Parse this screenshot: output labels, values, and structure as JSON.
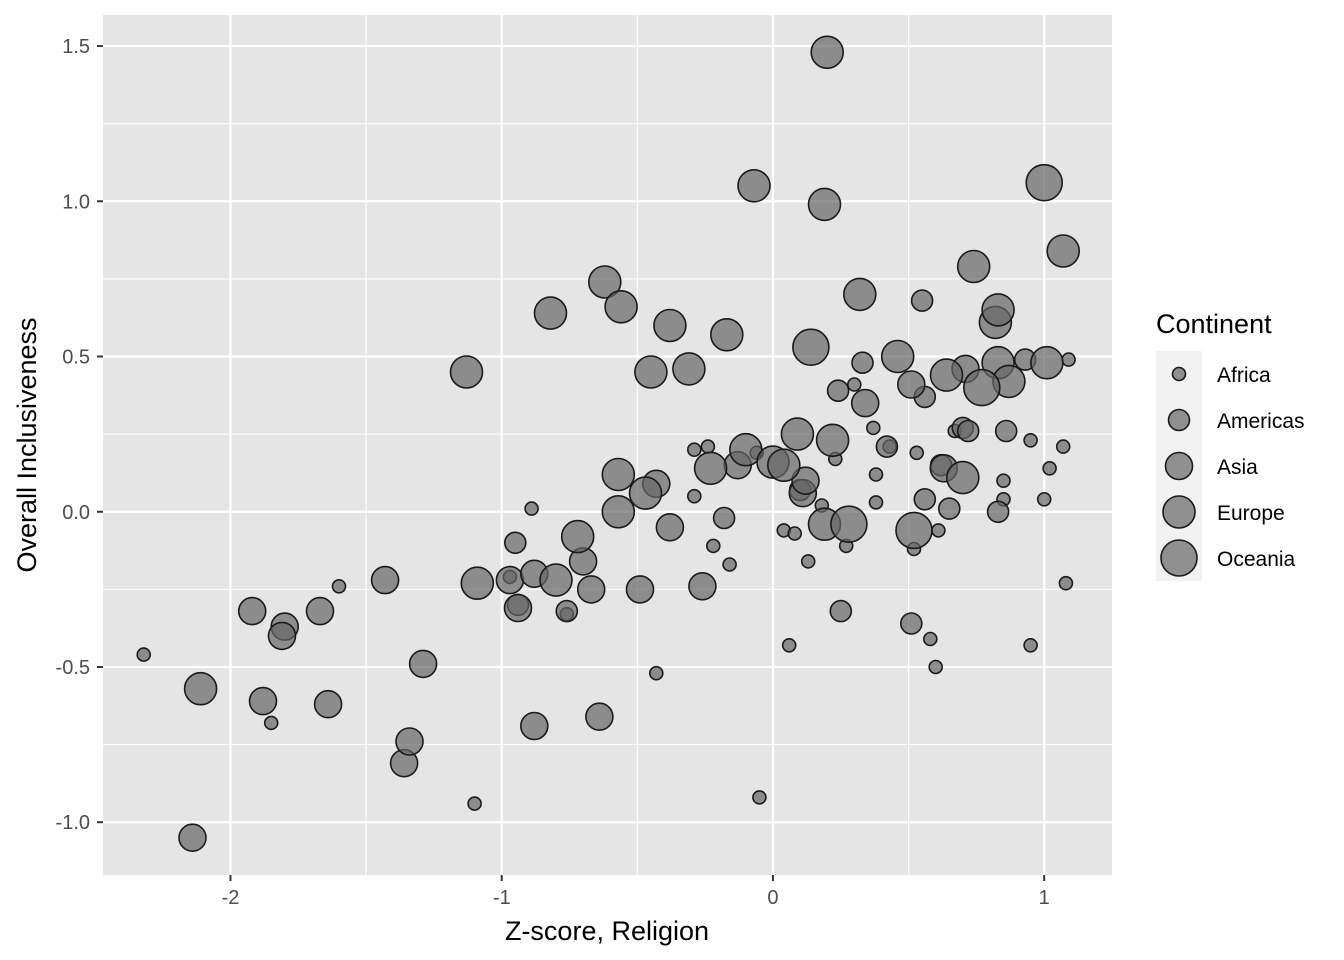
{
  "chart_data": {
    "type": "scatter",
    "title": "",
    "xlabel": "Z-score, Religion",
    "ylabel": "Overall Inclusiveness",
    "xlim": [
      -2.47,
      1.25
    ],
    "ylim": [
      -1.17,
      1.6
    ],
    "x_ticks": [
      -2,
      -1,
      0,
      1
    ],
    "x_tick_labels": [
      "-2",
      "-1",
      "0",
      "1"
    ],
    "y_ticks": [
      -1.0,
      -0.5,
      0.0,
      0.5,
      1.0,
      1.5
    ],
    "y_tick_labels": [
      "-1.0",
      "-0.5",
      "0.0",
      "0.5",
      "1.0",
      "1.5"
    ],
    "grid": true,
    "panel_color": "#e5e5e5",
    "grid_color": "#ffffff",
    "point_fill": "#666666",
    "point_opacity": 0.7,
    "point_stroke": "#1a1a1a",
    "legend": {
      "title": "Continent",
      "placement": "right",
      "entries": [
        "Africa",
        "Americas",
        "Asia",
        "Europe",
        "Oceania"
      ]
    },
    "size_by_continent": {
      "Africa": 1,
      "Americas": 2,
      "Asia": 3,
      "Europe": 4,
      "Oceania": 5
    },
    "points": [
      {
        "x": -2.32,
        "y": -0.46,
        "c": "Africa"
      },
      {
        "x": -1.6,
        "y": -0.24,
        "c": "Africa"
      },
      {
        "x": -1.85,
        "y": -0.68,
        "c": "Africa"
      },
      {
        "x": -1.1,
        "y": -0.94,
        "c": "Africa"
      },
      {
        "x": -0.97,
        "y": -0.21,
        "c": "Africa"
      },
      {
        "x": -0.89,
        "y": 0.01,
        "c": "Africa"
      },
      {
        "x": -0.76,
        "y": -0.33,
        "c": "Africa"
      },
      {
        "x": -0.43,
        "y": -0.52,
        "c": "Africa"
      },
      {
        "x": -0.29,
        "y": 0.2,
        "c": "Africa"
      },
      {
        "x": -0.29,
        "y": 0.05,
        "c": "Africa"
      },
      {
        "x": -0.24,
        "y": 0.21,
        "c": "Africa"
      },
      {
        "x": -0.22,
        "y": -0.11,
        "c": "Africa"
      },
      {
        "x": -0.16,
        "y": -0.17,
        "c": "Africa"
      },
      {
        "x": -0.06,
        "y": 0.19,
        "c": "Africa"
      },
      {
        "x": -0.05,
        "y": -0.92,
        "c": "Africa"
      },
      {
        "x": 0.04,
        "y": -0.06,
        "c": "Africa"
      },
      {
        "x": 0.06,
        "y": -0.43,
        "c": "Africa"
      },
      {
        "x": 0.08,
        "y": -0.07,
        "c": "Africa"
      },
      {
        "x": 0.13,
        "y": -0.16,
        "c": "Africa"
      },
      {
        "x": 0.18,
        "y": 0.02,
        "c": "Africa"
      },
      {
        "x": 0.23,
        "y": 0.17,
        "c": "Africa"
      },
      {
        "x": 0.27,
        "y": -0.11,
        "c": "Africa"
      },
      {
        "x": 0.3,
        "y": 0.41,
        "c": "Africa"
      },
      {
        "x": 0.37,
        "y": 0.27,
        "c": "Africa"
      },
      {
        "x": 0.38,
        "y": 0.12,
        "c": "Africa"
      },
      {
        "x": 0.38,
        "y": 0.03,
        "c": "Africa"
      },
      {
        "x": 0.43,
        "y": 0.21,
        "c": "Africa"
      },
      {
        "x": 0.52,
        "y": -0.12,
        "c": "Africa"
      },
      {
        "x": 0.53,
        "y": 0.19,
        "c": "Africa"
      },
      {
        "x": 0.58,
        "y": -0.41,
        "c": "Africa"
      },
      {
        "x": 0.6,
        "y": -0.5,
        "c": "Africa"
      },
      {
        "x": 0.61,
        "y": -0.06,
        "c": "Africa"
      },
      {
        "x": 0.67,
        "y": 0.26,
        "c": "Africa"
      },
      {
        "x": 0.95,
        "y": 0.23,
        "c": "Africa"
      },
      {
        "x": 0.95,
        "y": -0.43,
        "c": "Africa"
      },
      {
        "x": 0.85,
        "y": 0.1,
        "c": "Africa"
      },
      {
        "x": 0.85,
        "y": 0.04,
        "c": "Africa"
      },
      {
        "x": 1.0,
        "y": 0.04,
        "c": "Africa"
      },
      {
        "x": 1.02,
        "y": 0.14,
        "c": "Africa"
      },
      {
        "x": 1.07,
        "y": 0.21,
        "c": "Africa"
      },
      {
        "x": 1.08,
        "y": -0.23,
        "c": "Africa"
      },
      {
        "x": 1.09,
        "y": 0.49,
        "c": "Africa"
      },
      {
        "x": -0.76,
        "y": -0.32,
        "c": "Americas"
      },
      {
        "x": -0.95,
        "y": -0.1,
        "c": "Americas"
      },
      {
        "x": -0.94,
        "y": -0.3,
        "c": "Americas"
      },
      {
        "x": -0.18,
        "y": -0.02,
        "c": "Americas"
      },
      {
        "x": 0.1,
        "y": 0.07,
        "c": "Americas"
      },
      {
        "x": 0.24,
        "y": 0.39,
        "c": "Americas"
      },
      {
        "x": 0.25,
        "y": -0.32,
        "c": "Americas"
      },
      {
        "x": 0.42,
        "y": 0.21,
        "c": "Americas"
      },
      {
        "x": 0.51,
        "y": -0.36,
        "c": "Americas"
      },
      {
        "x": 0.56,
        "y": 0.04,
        "c": "Americas"
      },
      {
        "x": 0.55,
        "y": 0.68,
        "c": "Americas"
      },
      {
        "x": 0.56,
        "y": 0.37,
        "c": "Americas"
      },
      {
        "x": 0.62,
        "y": 0.15,
        "c": "Americas"
      },
      {
        "x": 0.65,
        "y": 0.01,
        "c": "Americas"
      },
      {
        "x": 0.7,
        "y": 0.27,
        "c": "Americas"
      },
      {
        "x": 0.72,
        "y": 0.26,
        "c": "Americas"
      },
      {
        "x": 0.83,
        "y": -0.0,
        "c": "Americas"
      },
      {
        "x": 0.86,
        "y": 0.26,
        "c": "Americas"
      },
      {
        "x": 0.93,
        "y": 0.49,
        "c": "Americas"
      },
      {
        "x": 0.33,
        "y": 0.48,
        "c": "Americas"
      },
      {
        "x": -1.36,
        "y": -0.81,
        "c": "Asia"
      },
      {
        "x": -1.34,
        "y": -0.74,
        "c": "Asia"
      },
      {
        "x": -1.29,
        "y": -0.49,
        "c": "Asia"
      },
      {
        "x": -1.43,
        "y": -0.22,
        "c": "Asia"
      },
      {
        "x": -1.67,
        "y": -0.32,
        "c": "Asia"
      },
      {
        "x": -1.64,
        "y": -0.62,
        "c": "Asia"
      },
      {
        "x": -1.8,
        "y": -0.37,
        "c": "Asia"
      },
      {
        "x": -1.81,
        "y": -0.4,
        "c": "Asia"
      },
      {
        "x": -1.88,
        "y": -0.61,
        "c": "Asia"
      },
      {
        "x": -1.92,
        "y": -0.32,
        "c": "Asia"
      },
      {
        "x": -2.14,
        "y": -1.05,
        "c": "Asia"
      },
      {
        "x": -0.97,
        "y": -0.22,
        "c": "Asia"
      },
      {
        "x": -0.94,
        "y": -0.31,
        "c": "Asia"
      },
      {
        "x": -0.88,
        "y": -0.69,
        "c": "Asia"
      },
      {
        "x": -0.88,
        "y": -0.2,
        "c": "Asia"
      },
      {
        "x": -0.7,
        "y": -0.16,
        "c": "Asia"
      },
      {
        "x": -0.67,
        "y": -0.25,
        "c": "Asia"
      },
      {
        "x": -0.64,
        "y": -0.66,
        "c": "Asia"
      },
      {
        "x": -0.49,
        "y": -0.25,
        "c": "Asia"
      },
      {
        "x": -0.43,
        "y": 0.09,
        "c": "Asia"
      },
      {
        "x": -0.38,
        "y": -0.05,
        "c": "Asia"
      },
      {
        "x": -0.26,
        "y": -0.24,
        "c": "Asia"
      },
      {
        "x": -0.13,
        "y": 0.15,
        "c": "Asia"
      },
      {
        "x": 0.11,
        "y": 0.06,
        "c": "Asia"
      },
      {
        "x": 0.12,
        "y": 0.1,
        "c": "Asia"
      },
      {
        "x": 0.34,
        "y": 0.35,
        "c": "Asia"
      },
      {
        "x": 0.51,
        "y": 0.41,
        "c": "Asia"
      },
      {
        "x": 0.63,
        "y": 0.14,
        "c": "Asia"
      },
      {
        "x": 0.71,
        "y": 0.46,
        "c": "Asia"
      },
      {
        "x": -2.11,
        "y": -0.57,
        "c": "Europe"
      },
      {
        "x": -1.13,
        "y": 0.45,
        "c": "Europe"
      },
      {
        "x": -1.09,
        "y": -0.23,
        "c": "Europe"
      },
      {
        "x": -0.82,
        "y": 0.64,
        "c": "Europe"
      },
      {
        "x": -0.8,
        "y": -0.22,
        "c": "Europe"
      },
      {
        "x": -0.72,
        "y": -0.08,
        "c": "Europe"
      },
      {
        "x": -0.62,
        "y": 0.74,
        "c": "Europe"
      },
      {
        "x": -0.56,
        "y": 0.66,
        "c": "Europe"
      },
      {
        "x": -0.57,
        "y": 0.12,
        "c": "Europe"
      },
      {
        "x": -0.45,
        "y": 0.45,
        "c": "Europe"
      },
      {
        "x": -0.38,
        "y": 0.6,
        "c": "Europe"
      },
      {
        "x": -0.31,
        "y": 0.46,
        "c": "Europe"
      },
      {
        "x": -0.23,
        "y": 0.14,
        "c": "Europe"
      },
      {
        "x": -0.17,
        "y": 0.57,
        "c": "Europe"
      },
      {
        "x": -0.1,
        "y": 0.2,
        "c": "Europe"
      },
      {
        "x": -0.07,
        "y": 1.05,
        "c": "Europe"
      },
      {
        "x": 0.09,
        "y": 0.25,
        "c": "Europe"
      },
      {
        "x": 0.19,
        "y": 0.99,
        "c": "Europe"
      },
      {
        "x": 0.2,
        "y": 1.48,
        "c": "Europe"
      },
      {
        "x": 0.22,
        "y": 0.23,
        "c": "Europe"
      },
      {
        "x": 0.32,
        "y": 0.7,
        "c": "Europe"
      },
      {
        "x": 0.46,
        "y": 0.5,
        "c": "Europe"
      },
      {
        "x": 0.64,
        "y": 0.44,
        "c": "Europe"
      },
      {
        "x": 0.7,
        "y": 0.11,
        "c": "Europe"
      },
      {
        "x": 0.74,
        "y": 0.79,
        "c": "Europe"
      },
      {
        "x": 0.82,
        "y": 0.61,
        "c": "Europe"
      },
      {
        "x": 0.83,
        "y": 0.65,
        "c": "Europe"
      },
      {
        "x": 0.83,
        "y": 0.48,
        "c": "Europe"
      },
      {
        "x": 0.87,
        "y": 0.42,
        "c": "Europe"
      },
      {
        "x": 1.01,
        "y": 0.48,
        "c": "Europe"
      },
      {
        "x": 1.07,
        "y": 0.84,
        "c": "Europe"
      },
      {
        "x": -0.47,
        "y": 0.06,
        "c": "Europe"
      },
      {
        "x": -0.57,
        "y": 0.0,
        "c": "Europe"
      },
      {
        "x": 0.0,
        "y": 0.16,
        "c": "Europe"
      },
      {
        "x": 0.04,
        "y": 0.15,
        "c": "Europe"
      },
      {
        "x": 0.19,
        "y": -0.04,
        "c": "Europe"
      },
      {
        "x": 0.14,
        "y": 0.53,
        "c": "Oceania"
      },
      {
        "x": 0.28,
        "y": -0.04,
        "c": "Oceania"
      },
      {
        "x": 0.52,
        "y": -0.06,
        "c": "Oceania"
      },
      {
        "x": 0.77,
        "y": 0.4,
        "c": "Oceania"
      },
      {
        "x": 1.0,
        "y": 1.06,
        "c": "Oceania"
      }
    ]
  }
}
